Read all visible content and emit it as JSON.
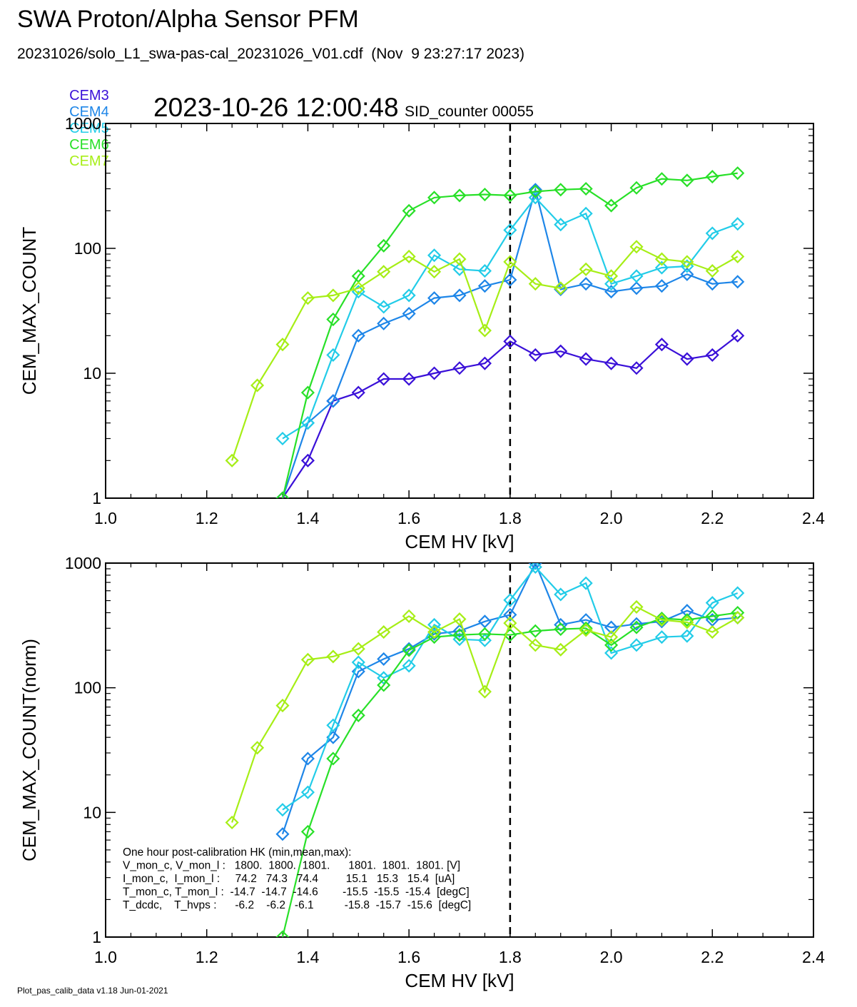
{
  "header": {
    "title": "SWA Proton/Alpha Sensor PFM",
    "file": "20231026/solo_L1_swa-pas-cal_20231026_V01.cdf  (Nov  9 23:27:17 2023)",
    "timestamp": "2023-10-26 12:00:48",
    "sid": "SID_counter 00055"
  },
  "legend": [
    {
      "label": "CEM3",
      "color": "#3a10d8"
    },
    {
      "label": "CEM4",
      "color": "#1e86e8"
    },
    {
      "label": "CEM5",
      "color": "#22cce8"
    },
    {
      "label": "CEM6",
      "color": "#28e028"
    },
    {
      "label": "CEM7",
      "color": "#a6ee16"
    }
  ],
  "footer": "Plot_pas_calib_data v1.18 Jun-01-2021",
  "hk_note": [
    "One hour post-calibration HK (min,mean,max):",
    "V_mon_c, V_mon_l :   1800.  1800.  1801.      1801.  1801.  1801. [V]",
    "I_mon_c,  I_mon_l :     74.2   74.3   74.4         15.1   15.3   15.4  [uA]",
    "T_mon_c, T_mon_l :  -14.7  -14.7  -14.6        -15.5  -15.5  -15.4  [degC]",
    "T_dcdc,    T_hvps :      -6.2    -6.2   -6.1          -15.8  -15.7  -15.6  [degC]"
  ],
  "chart_data": [
    {
      "type": "line",
      "xlabel": "CEM HV [kV]",
      "ylabel": "CEM_MAX_COUNT",
      "xlim": [
        1.0,
        2.4
      ],
      "ylim": [
        1,
        1000
      ],
      "yscale": "log",
      "xticks": [
        "1.0",
        "1.2",
        "1.4",
        "1.6",
        "1.8",
        "2.0",
        "2.2",
        "2.4"
      ],
      "yticks": [
        "1",
        "10",
        "100",
        "1000"
      ],
      "vline": 1.8,
      "marker": "diamond",
      "series": [
        {
          "name": "CEM3",
          "color": "#3a10d8",
          "points": [
            [
              1.35,
              1
            ],
            [
              1.4,
              2
            ],
            [
              1.45,
              6
            ],
            [
              1.5,
              7
            ],
            [
              1.55,
              9
            ],
            [
              1.6,
              9
            ],
            [
              1.65,
              10
            ],
            [
              1.7,
              11
            ],
            [
              1.75,
              12
            ],
            [
              1.8,
              18
            ],
            [
              1.85,
              14
            ],
            [
              1.9,
              15
            ],
            [
              1.95,
              13
            ],
            [
              2.0,
              12
            ],
            [
              2.05,
              11
            ],
            [
              2.1,
              17
            ],
            [
              2.15,
              13
            ],
            [
              2.2,
              14
            ],
            [
              2.25,
              20
            ]
          ]
        },
        {
          "name": "CEM4",
          "color": "#1e86e8",
          "points": [
            [
              1.35,
              1
            ],
            [
              1.4,
              4
            ],
            [
              1.45,
              6
            ],
            [
              1.5,
              20
            ],
            [
              1.55,
              25
            ],
            [
              1.6,
              30
            ],
            [
              1.65,
              40
            ],
            [
              1.7,
              42
            ],
            [
              1.75,
              50
            ],
            [
              1.8,
              56
            ],
            [
              1.85,
              295
            ],
            [
              1.9,
              47
            ],
            [
              1.95,
              52
            ],
            [
              2.0,
              45
            ],
            [
              2.05,
              48
            ],
            [
              2.1,
              50
            ],
            [
              2.15,
              62
            ],
            [
              2.2,
              52
            ],
            [
              2.25,
              54
            ]
          ]
        },
        {
          "name": "CEM5",
          "color": "#22cce8",
          "points": [
            [
              1.35,
              3
            ],
            [
              1.4,
              4
            ],
            [
              1.45,
              14
            ],
            [
              1.5,
              45
            ],
            [
              1.55,
              34
            ],
            [
              1.6,
              42
            ],
            [
              1.65,
              88
            ],
            [
              1.7,
              68
            ],
            [
              1.75,
              66
            ],
            [
              1.8,
              140
            ],
            [
              1.85,
              255
            ],
            [
              1.9,
              155
            ],
            [
              1.95,
              190
            ],
            [
              2.0,
              52
            ],
            [
              2.05,
              60
            ],
            [
              2.1,
              70
            ],
            [
              2.15,
              72
            ],
            [
              2.2,
              132
            ],
            [
              2.25,
              157
            ]
          ]
        },
        {
          "name": "CEM6",
          "color": "#28e028",
          "points": [
            [
              1.35,
              1
            ],
            [
              1.4,
              7
            ],
            [
              1.45,
              27
            ],
            [
              1.5,
              60
            ],
            [
              1.55,
              105
            ],
            [
              1.6,
              200
            ],
            [
              1.65,
              255
            ],
            [
              1.7,
              265
            ],
            [
              1.75,
              270
            ],
            [
              1.8,
              265
            ],
            [
              1.85,
              285
            ],
            [
              1.9,
              295
            ],
            [
              1.95,
              300
            ],
            [
              2.0,
              220
            ],
            [
              2.05,
              305
            ],
            [
              2.1,
              360
            ],
            [
              2.15,
              350
            ],
            [
              2.2,
              375
            ],
            [
              2.25,
              400
            ]
          ]
        },
        {
          "name": "CEM7",
          "color": "#a6ee16",
          "points": [
            [
              1.25,
              2
            ],
            [
              1.3,
              8
            ],
            [
              1.35,
              17
            ],
            [
              1.4,
              40
            ],
            [
              1.45,
              42
            ],
            [
              1.5,
              48
            ],
            [
              1.55,
              65
            ],
            [
              1.6,
              86
            ],
            [
              1.65,
              65
            ],
            [
              1.7,
              82
            ],
            [
              1.75,
              22
            ],
            [
              1.8,
              78
            ],
            [
              1.85,
              52
            ],
            [
              1.9,
              48
            ],
            [
              1.95,
              68
            ],
            [
              2.0,
              60
            ],
            [
              2.05,
              103
            ],
            [
              2.1,
              82
            ],
            [
              2.15,
              78
            ],
            [
              2.2,
              66
            ],
            [
              2.25,
              86
            ]
          ]
        }
      ]
    },
    {
      "type": "line",
      "xlabel": "CEM HV [kV]",
      "ylabel": "CEM_MAX_COUNT(norm)",
      "xlim": [
        1.0,
        2.4
      ],
      "ylim": [
        1,
        1000
      ],
      "yscale": "log",
      "xticks": [
        "1.0",
        "1.2",
        "1.4",
        "1.6",
        "1.8",
        "2.0",
        "2.2",
        "2.4"
      ],
      "yticks": [
        "1",
        "10",
        "100",
        "1000"
      ],
      "vline": 1.8,
      "marker": "diamond",
      "series": [
        {
          "name": "CEM3",
          "color": "#3a10d8",
          "points": []
        },
        {
          "name": "CEM4",
          "color": "#1e86e8",
          "points": [
            [
              1.35,
              6.7
            ],
            [
              1.4,
              27
            ],
            [
              1.45,
              40
            ],
            [
              1.5,
              135
            ],
            [
              1.55,
              170
            ],
            [
              1.6,
              205
            ],
            [
              1.65,
              270
            ],
            [
              1.7,
              285
            ],
            [
              1.75,
              340
            ],
            [
              1.8,
              385
            ],
            [
              1.85,
              1000
            ],
            [
              1.9,
              320
            ],
            [
              1.95,
              350
            ],
            [
              2.0,
              305
            ],
            [
              2.05,
              325
            ],
            [
              2.1,
              340
            ],
            [
              2.15,
              415
            ],
            [
              2.2,
              350
            ],
            [
              2.25,
              365
            ]
          ]
        },
        {
          "name": "CEM5",
          "color": "#22cce8",
          "points": [
            [
              1.35,
              10.5
            ],
            [
              1.4,
              14.5
            ],
            [
              1.45,
              50
            ],
            [
              1.5,
              160
            ],
            [
              1.55,
              120
            ],
            [
              1.6,
              150
            ],
            [
              1.65,
              320
            ],
            [
              1.7,
              245
            ],
            [
              1.75,
              240
            ],
            [
              1.8,
              505
            ],
            [
              1.85,
              930
            ],
            [
              1.9,
              560
            ],
            [
              1.95,
              690
            ],
            [
              2.0,
              190
            ],
            [
              2.05,
              220
            ],
            [
              2.1,
              255
            ],
            [
              2.15,
              260
            ],
            [
              2.2,
              480
            ],
            [
              2.25,
              575
            ]
          ]
        },
        {
          "name": "CEM6",
          "color": "#28e028",
          "points": [
            [
              1.35,
              1
            ],
            [
              1.4,
              7
            ],
            [
              1.45,
              27
            ],
            [
              1.5,
              60
            ],
            [
              1.55,
              105
            ],
            [
              1.6,
              200
            ],
            [
              1.65,
              255
            ],
            [
              1.7,
              265
            ],
            [
              1.75,
              270
            ],
            [
              1.8,
              265
            ],
            [
              1.85,
              285
            ],
            [
              1.9,
              295
            ],
            [
              1.95,
              300
            ],
            [
              2.0,
              220
            ],
            [
              2.05,
              305
            ],
            [
              2.1,
              360
            ],
            [
              2.15,
              350
            ],
            [
              2.2,
              375
            ],
            [
              2.25,
              400
            ]
          ]
        },
        {
          "name": "CEM7",
          "color": "#a6ee16",
          "points": [
            [
              1.25,
              8.3
            ],
            [
              1.3,
              33
            ],
            [
              1.35,
              72
            ],
            [
              1.4,
              168
            ],
            [
              1.45,
              178
            ],
            [
              1.5,
              205
            ],
            [
              1.55,
              280
            ],
            [
              1.6,
              375
            ],
            [
              1.65,
              280
            ],
            [
              1.7,
              355
            ],
            [
              1.75,
              93
            ],
            [
              1.8,
              330
            ],
            [
              1.85,
              220
            ],
            [
              1.9,
              202
            ],
            [
              1.95,
              290
            ],
            [
              2.0,
              255
            ],
            [
              2.05,
              445
            ],
            [
              2.1,
              350
            ],
            [
              2.15,
              335
            ],
            [
              2.2,
              280
            ],
            [
              2.25,
              365
            ]
          ]
        }
      ]
    }
  ]
}
